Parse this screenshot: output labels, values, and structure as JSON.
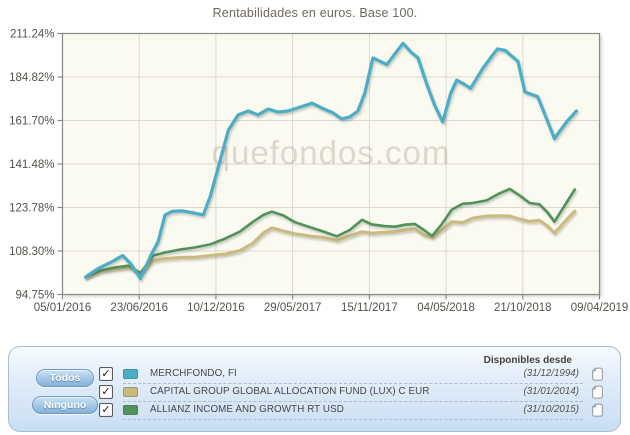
{
  "title": "Rentabilidades en euros. Base 100.",
  "watermark": "quefondos.com",
  "legend": {
    "buttons": {
      "all": "Todos",
      "none": "Ninguno"
    },
    "available_header": "Disponibles desde",
    "items": [
      {
        "name": "MERCHFONDO, FI",
        "available_since": "(31/12/1994)",
        "color": "#4badc6",
        "checked": true
      },
      {
        "name": "CAPITAL GROUP GLOBAL ALLOCATION FUND (LUX) C EUR",
        "available_since": "(31/01/2014)",
        "color": "#cbba7d",
        "checked": true
      },
      {
        "name": "ALLIANZ INCOME AND GROWTH RT USD",
        "available_since": "(31/10/2015)",
        "color": "#4f935a",
        "checked": true
      }
    ]
  },
  "chart_data": {
    "type": "line",
    "title": "Rentabilidades en euros. Base 100.",
    "y_scale": "log",
    "grid": true,
    "plot_bg": "#fbfaf0",
    "grid_color": "#dcdad0",
    "axis_color": "#8a8a85",
    "label_color": "#56524b",
    "ylim": [
      94.75,
      211.24
    ],
    "y_ticks": [
      "211.24%",
      "184.82%",
      "161.70%",
      "141.48%",
      "123.78%",
      "108.30%",
      "94.75%"
    ],
    "y_tick_values": [
      211.24,
      184.82,
      161.7,
      141.48,
      123.78,
      108.3,
      94.75
    ],
    "x_ticks": [
      "05/01/2016",
      "23/06/2016",
      "10/12/2016",
      "29/05/2017",
      "15/11/2017",
      "04/05/2018",
      "21/10/2018",
      "09/04/2019"
    ],
    "series": [
      {
        "name": "MERCHFONDO, FI",
        "color": "#4badc6",
        "width": 3.2,
        "points": [
          [
            0.043,
            100.0
          ],
          [
            0.065,
            102.5
          ],
          [
            0.089,
            104.5
          ],
          [
            0.112,
            106.8
          ],
          [
            0.128,
            104.0
          ],
          [
            0.145,
            99.5
          ],
          [
            0.165,
            107.0
          ],
          [
            0.178,
            111.5
          ],
          [
            0.191,
            121.0
          ],
          [
            0.204,
            122.3
          ],
          [
            0.223,
            122.5
          ],
          [
            0.242,
            121.8
          ],
          [
            0.262,
            121.0
          ],
          [
            0.275,
            128.0
          ],
          [
            0.29,
            140.0
          ],
          [
            0.309,
            157.0
          ],
          [
            0.327,
            164.5
          ],
          [
            0.346,
            166.5
          ],
          [
            0.364,
            164.5
          ],
          [
            0.383,
            167.5
          ],
          [
            0.401,
            166.0
          ],
          [
            0.42,
            166.5
          ],
          [
            0.442,
            168.5
          ],
          [
            0.465,
            170.5
          ],
          [
            0.483,
            168.0
          ],
          [
            0.504,
            165.5
          ],
          [
            0.52,
            162.5
          ],
          [
            0.535,
            163.5
          ],
          [
            0.55,
            166.5
          ],
          [
            0.563,
            176.0
          ],
          [
            0.578,
            196.0
          ],
          [
            0.591,
            194.0
          ],
          [
            0.604,
            192.0
          ],
          [
            0.619,
            198.5
          ],
          [
            0.634,
            205.0
          ],
          [
            0.649,
            199.5
          ],
          [
            0.662,
            196.0
          ],
          [
            0.678,
            181.0
          ],
          [
            0.693,
            169.5
          ],
          [
            0.708,
            161.0
          ],
          [
            0.723,
            176.0
          ],
          [
            0.734,
            183.0
          ],
          [
            0.747,
            181.0
          ],
          [
            0.76,
            178.5
          ],
          [
            0.783,
            190.0
          ],
          [
            0.797,
            196.0
          ],
          [
            0.81,
            201.5
          ],
          [
            0.825,
            200.5
          ],
          [
            0.835,
            197.5
          ],
          [
            0.848,
            194.0
          ],
          [
            0.861,
            176.5
          ],
          [
            0.885,
            174.0
          ],
          [
            0.916,
            153.0
          ],
          [
            0.94,
            161.5
          ],
          [
            0.957,
            166.5
          ]
        ]
      },
      {
        "name": "CAPITAL GROUP GLOBAL ALLOCATION FUND (LUX) C EUR",
        "color": "#cbba7d",
        "width": 3.0,
        "points": [
          [
            0.043,
            100.0
          ],
          [
            0.071,
            101.8
          ],
          [
            0.099,
            102.5
          ],
          [
            0.123,
            103.0
          ],
          [
            0.145,
            101.3
          ],
          [
            0.169,
            105.2
          ],
          [
            0.191,
            105.8
          ],
          [
            0.219,
            106.2
          ],
          [
            0.247,
            106.3
          ],
          [
            0.275,
            106.8
          ],
          [
            0.303,
            107.3
          ],
          [
            0.331,
            108.5
          ],
          [
            0.355,
            111.0
          ],
          [
            0.374,
            114.5
          ],
          [
            0.39,
            116.3
          ],
          [
            0.411,
            115.2
          ],
          [
            0.433,
            114.2
          ],
          [
            0.461,
            113.4
          ],
          [
            0.485,
            112.9
          ],
          [
            0.511,
            111.9
          ],
          [
            0.535,
            113.5
          ],
          [
            0.558,
            114.9
          ],
          [
            0.576,
            114.4
          ],
          [
            0.6,
            114.7
          ],
          [
            0.619,
            114.9
          ],
          [
            0.638,
            115.5
          ],
          [
            0.656,
            115.9
          ],
          [
            0.673,
            113.8
          ],
          [
            0.688,
            113.0
          ],
          [
            0.706,
            115.5
          ],
          [
            0.725,
            118.5
          ],
          [
            0.745,
            118.2
          ],
          [
            0.764,
            119.8
          ],
          [
            0.79,
            120.6
          ],
          [
            0.814,
            120.7
          ],
          [
            0.833,
            120.6
          ],
          [
            0.851,
            119.5
          ],
          [
            0.87,
            118.6
          ],
          [
            0.888,
            119.0
          ],
          [
            0.903,
            117.0
          ],
          [
            0.916,
            114.4
          ],
          [
            0.935,
            118.5
          ],
          [
            0.954,
            122.4
          ]
        ]
      },
      {
        "name": "ALLIANZ INCOME AND GROWTH RT USD",
        "color": "#4f935a",
        "width": 2.6,
        "points": [
          [
            0.043,
            100.0
          ],
          [
            0.071,
            102.0
          ],
          [
            0.099,
            103.0
          ],
          [
            0.123,
            103.5
          ],
          [
            0.145,
            101.2
          ],
          [
            0.169,
            106.8
          ],
          [
            0.191,
            107.8
          ],
          [
            0.219,
            108.8
          ],
          [
            0.247,
            109.5
          ],
          [
            0.275,
            110.5
          ],
          [
            0.303,
            112.5
          ],
          [
            0.331,
            115.0
          ],
          [
            0.355,
            118.5
          ],
          [
            0.374,
            121.0
          ],
          [
            0.39,
            122.2
          ],
          [
            0.411,
            120.8
          ],
          [
            0.433,
            118.3
          ],
          [
            0.461,
            116.5
          ],
          [
            0.485,
            115.0
          ],
          [
            0.511,
            113.3
          ],
          [
            0.535,
            115.5
          ],
          [
            0.558,
            119.2
          ],
          [
            0.576,
            117.5
          ],
          [
            0.6,
            116.9
          ],
          [
            0.619,
            116.7
          ],
          [
            0.638,
            117.4
          ],
          [
            0.656,
            117.7
          ],
          [
            0.673,
            115.5
          ],
          [
            0.688,
            113.4
          ],
          [
            0.706,
            117.5
          ],
          [
            0.725,
            123.0
          ],
          [
            0.745,
            125.2
          ],
          [
            0.764,
            125.5
          ],
          [
            0.79,
            126.5
          ],
          [
            0.814,
            129.3
          ],
          [
            0.833,
            131.0
          ],
          [
            0.851,
            128.5
          ],
          [
            0.87,
            125.5
          ],
          [
            0.888,
            125.0
          ],
          [
            0.903,
            122.0
          ],
          [
            0.916,
            118.5
          ],
          [
            0.935,
            124.5
          ],
          [
            0.954,
            130.8
          ]
        ]
      }
    ]
  }
}
